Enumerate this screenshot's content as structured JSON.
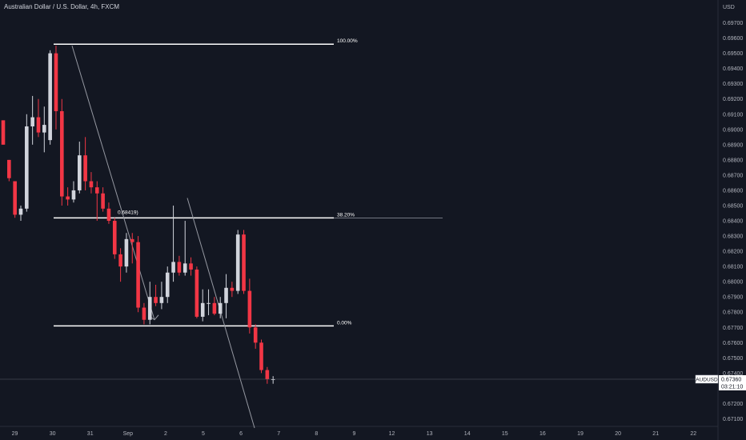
{
  "chart_title": "Australian Dollar / U.S. Dollar, 4h, FXCM",
  "currency_label": "USD",
  "chart_data": {
    "type": "candlestick",
    "symbol": "AUDUSD",
    "ylim": [
      0.6705,
      0.6985
    ],
    "y_ticks": [
      "0.67100",
      "0.67200",
      "0.67400",
      "0.67500",
      "0.67600",
      "0.67700",
      "0.67800",
      "0.67900",
      "0.68000",
      "0.68100",
      "0.68200",
      "0.68300",
      "0.68400",
      "0.68500",
      "0.68600",
      "0.68700",
      "0.68800",
      "0.68900",
      "0.69000",
      "0.69100",
      "0.69200",
      "0.69300",
      "0.69400",
      "0.69500",
      "0.69600",
      "0.69700"
    ],
    "x_ticks": [
      "29",
      "30",
      "31",
      "Sep",
      "2",
      "5",
      "6",
      "7",
      "8",
      "9",
      "12",
      "13",
      "14",
      "15",
      "16",
      "19",
      "20",
      "21",
      "22"
    ],
    "candles": [
      {
        "o": 0.6906,
        "h": 0.6906,
        "l": 0.689,
        "c": 0.689
      },
      {
        "o": 0.688,
        "h": 0.688,
        "l": 0.6866,
        "c": 0.6868
      },
      {
        "o": 0.6866,
        "h": 0.6866,
        "l": 0.6842,
        "c": 0.6844
      },
      {
        "o": 0.6844,
        "h": 0.685,
        "l": 0.684,
        "c": 0.6848
      },
      {
        "o": 0.6848,
        "h": 0.691,
        "l": 0.6846,
        "c": 0.6902
      },
      {
        "o": 0.6902,
        "h": 0.6922,
        "l": 0.689,
        "c": 0.6908
      },
      {
        "o": 0.6908,
        "h": 0.692,
        "l": 0.6895,
        "c": 0.6898
      },
      {
        "o": 0.6898,
        "h": 0.6915,
        "l": 0.6885,
        "c": 0.6903
      },
      {
        "o": 0.6893,
        "h": 0.6952,
        "l": 0.689,
        "c": 0.695
      },
      {
        "o": 0.695,
        "h": 0.6955,
        "l": 0.69,
        "c": 0.6912
      },
      {
        "o": 0.6912,
        "h": 0.692,
        "l": 0.685,
        "c": 0.6856
      },
      {
        "o": 0.6856,
        "h": 0.6862,
        "l": 0.685,
        "c": 0.6854
      },
      {
        "o": 0.6854,
        "h": 0.6866,
        "l": 0.6852,
        "c": 0.686
      },
      {
        "o": 0.686,
        "h": 0.6892,
        "l": 0.6858,
        "c": 0.6883
      },
      {
        "o": 0.6883,
        "h": 0.6895,
        "l": 0.686,
        "c": 0.6866
      },
      {
        "o": 0.6866,
        "h": 0.6872,
        "l": 0.6858,
        "c": 0.6862
      },
      {
        "o": 0.6862,
        "h": 0.6866,
        "l": 0.684,
        "c": 0.6858
      },
      {
        "o": 0.6858,
        "h": 0.6862,
        "l": 0.6846,
        "c": 0.6848
      },
      {
        "o": 0.6848,
        "h": 0.6852,
        "l": 0.6838,
        "c": 0.684
      },
      {
        "o": 0.684,
        "h": 0.6842,
        "l": 0.6815,
        "c": 0.6818
      },
      {
        "o": 0.6818,
        "h": 0.6822,
        "l": 0.68,
        "c": 0.681
      },
      {
        "o": 0.681,
        "h": 0.6832,
        "l": 0.6806,
        "c": 0.6828
      },
      {
        "o": 0.6828,
        "h": 0.6832,
        "l": 0.6812,
        "c": 0.6826
      },
      {
        "o": 0.6826,
        "h": 0.683,
        "l": 0.678,
        "c": 0.6783
      },
      {
        "o": 0.6783,
        "h": 0.6786,
        "l": 0.6772,
        "c": 0.6775
      },
      {
        "o": 0.6775,
        "h": 0.68,
        "l": 0.6772,
        "c": 0.679
      },
      {
        "o": 0.679,
        "h": 0.6798,
        "l": 0.6784,
        "c": 0.6786
      },
      {
        "o": 0.6786,
        "h": 0.68,
        "l": 0.6782,
        "c": 0.679
      },
      {
        "o": 0.679,
        "h": 0.681,
        "l": 0.6786,
        "c": 0.6806
      },
      {
        "o": 0.6806,
        "h": 0.685,
        "l": 0.68,
        "c": 0.6813
      },
      {
        "o": 0.6813,
        "h": 0.6817,
        "l": 0.6804,
        "c": 0.6806
      },
      {
        "o": 0.6806,
        "h": 0.684,
        "l": 0.6804,
        "c": 0.6812
      },
      {
        "o": 0.6812,
        "h": 0.6816,
        "l": 0.6804,
        "c": 0.6808
      },
      {
        "o": 0.6808,
        "h": 0.681,
        "l": 0.6776,
        "c": 0.6777
      },
      {
        "o": 0.6777,
        "h": 0.6795,
        "l": 0.6774,
        "c": 0.6786
      },
      {
        "o": 0.6786,
        "h": 0.6795,
        "l": 0.6778,
        "c": 0.6786
      },
      {
        "o": 0.6786,
        "h": 0.679,
        "l": 0.6778,
        "c": 0.6779
      },
      {
        "o": 0.6779,
        "h": 0.679,
        "l": 0.6776,
        "c": 0.6786
      },
      {
        "o": 0.6786,
        "h": 0.6805,
        "l": 0.6776,
        "c": 0.6796
      },
      {
        "o": 0.6796,
        "h": 0.68,
        "l": 0.679,
        "c": 0.6794
      },
      {
        "o": 0.6794,
        "h": 0.6834,
        "l": 0.6792,
        "c": 0.6831
      },
      {
        "o": 0.6831,
        "h": 0.6834,
        "l": 0.6792,
        "c": 0.6794
      },
      {
        "o": 0.6794,
        "h": 0.6802,
        "l": 0.6766,
        "c": 0.677
      },
      {
        "o": 0.677,
        "h": 0.6772,
        "l": 0.6756,
        "c": 0.676
      },
      {
        "o": 0.676,
        "h": 0.6762,
        "l": 0.674,
        "c": 0.6742
      },
      {
        "o": 0.6742,
        "h": 0.6744,
        "l": 0.6733,
        "c": 0.6736
      },
      {
        "o": 0.6736,
        "h": 0.6738,
        "l": 0.6733,
        "c": 0.6736
      }
    ],
    "fib_levels": [
      {
        "label": "100.00%",
        "price": 0.6956
      },
      {
        "label": "38.20%",
        "price": 0.68419
      },
      {
        "label": "0.00%",
        "price": 0.6771
      }
    ],
    "annotation": "0.68419)",
    "current_price": {
      "symbol": "AUDUSD",
      "price": "0.67360",
      "countdown": "03:21:10"
    },
    "colors": {
      "up": "#d1d4dc",
      "down": "#f23645",
      "background": "#131722",
      "text": "#b2b5be",
      "line": "#ffffff"
    }
  }
}
